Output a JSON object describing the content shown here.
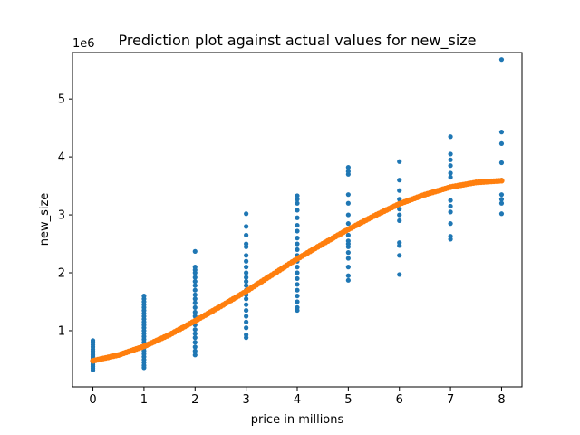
{
  "chart_data": {
    "type": "scatter",
    "title": "Prediction plot against actual values for new_size",
    "xlabel": "price in millions",
    "ylabel": "new_size",
    "y_offset_label": "1e6",
    "xlim": [
      -0.4,
      8.4
    ],
    "ylim": [
      0.03,
      5.8
    ],
    "xticks": [
      0,
      1,
      2,
      3,
      4,
      5,
      6,
      7,
      8
    ],
    "yticks": [
      1,
      2,
      3,
      4,
      5
    ],
    "grid": false,
    "series": [
      {
        "kind": "scatter",
        "color": "#1f77b4",
        "points": [
          {
            "x": 0,
            "ys": [
              0.32,
              0.35,
              0.38,
              0.41,
              0.44,
              0.47,
              0.5,
              0.53,
              0.56,
              0.59,
              0.62,
              0.65,
              0.68,
              0.72,
              0.76,
              0.8,
              0.83
            ]
          },
          {
            "x": 1,
            "ys": [
              0.36,
              0.4,
              0.45,
              0.5,
              0.55,
              0.6,
              0.65,
              0.7,
              0.75,
              0.8,
              0.85,
              0.9,
              0.95,
              1.0,
              1.05,
              1.1,
              1.15,
              1.2,
              1.25,
              1.3,
              1.35,
              1.4,
              1.45,
              1.5,
              1.55,
              1.6
            ]
          },
          {
            "x": 2,
            "ys": [
              0.58,
              0.65,
              0.72,
              0.8,
              0.88,
              0.95,
              1.02,
              1.1,
              1.18,
              1.25,
              1.32,
              1.4,
              1.48,
              1.55,
              1.62,
              1.7,
              1.78,
              1.85,
              1.92,
              2.0,
              2.05,
              2.1,
              2.37
            ]
          },
          {
            "x": 3,
            "ys": [
              0.88,
              0.93,
              1.05,
              1.15,
              1.25,
              1.35,
              1.45,
              1.55,
              1.62,
              1.7,
              1.78,
              1.85,
              1.92,
              2.0,
              2.1,
              2.2,
              2.3,
              2.45,
              2.5,
              2.65,
              2.8,
              3.02
            ]
          },
          {
            "x": 4,
            "ys": [
              1.35,
              1.4,
              1.5,
              1.6,
              1.7,
              1.8,
              1.9,
              2.0,
              2.1,
              2.2,
              2.3,
              2.4,
              2.5,
              2.6,
              2.72,
              2.82,
              2.95,
              3.08,
              3.2,
              3.27,
              3.33
            ]
          },
          {
            "x": 5,
            "ys": [
              1.87,
              1.95,
              2.1,
              2.25,
              2.35,
              2.45,
              2.5,
              2.55,
              2.65,
              2.75,
              2.85,
              3.0,
              3.2,
              3.35,
              3.7,
              3.75,
              3.82
            ]
          },
          {
            "x": 6,
            "ys": [
              1.97,
              2.3,
              2.47,
              2.52,
              2.9,
              3.0,
              3.1,
              3.2,
              3.27,
              3.42,
              3.6,
              3.92
            ]
          },
          {
            "x": 7,
            "ys": [
              2.58,
              2.63,
              2.85,
              3.05,
              3.15,
              3.25,
              3.65,
              3.72,
              3.85,
              3.95,
              4.05,
              4.35
            ]
          },
          {
            "x": 8,
            "ys": [
              3.02,
              3.2,
              3.27,
              3.35,
              3.6,
              3.9,
              4.23,
              4.43,
              5.68
            ]
          }
        ]
      },
      {
        "kind": "fit-curve",
        "color": "#ff7f0e",
        "x": [
          0,
          0.5,
          1,
          1.5,
          2,
          2.5,
          3,
          3.5,
          4,
          4.5,
          5,
          5.5,
          6,
          6.5,
          7,
          7.5,
          8
        ],
        "y": [
          0.48,
          0.58,
          0.73,
          0.93,
          1.17,
          1.42,
          1.68,
          1.96,
          2.24,
          2.5,
          2.75,
          2.98,
          3.19,
          3.35,
          3.48,
          3.56,
          3.59
        ]
      }
    ]
  }
}
